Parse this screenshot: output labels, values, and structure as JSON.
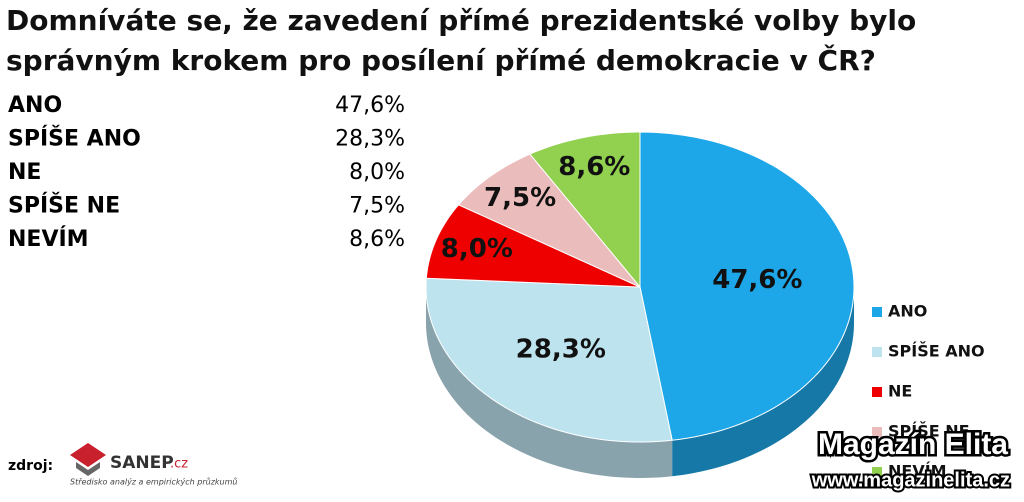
{
  "chart_data": {
    "type": "pie",
    "title": [
      "Domníváte se, že zavedení přímé prezidentské volby bylo",
      "správným krokem pro posílení přímé demokracie v ČR?"
    ],
    "categories": [
      "ANO",
      "SPÍŠE ANO",
      "NE",
      "SPÍŠE NE",
      "NEVÍM"
    ],
    "values": [
      47.6,
      28.3,
      8.0,
      7.5,
      8.6
    ],
    "value_labels": [
      "47,6%",
      "28,3%",
      "8,0%",
      "7,5%",
      "8,6%"
    ],
    "colors": [
      "#1ea7e8",
      "#bde3ef",
      "#ee0000",
      "#ebbcbc",
      "#92d050"
    ],
    "legend": "right"
  },
  "source": {
    "label": "zdroj:",
    "logo": "SANEP",
    "logo_suffix": ".cz",
    "logo_subtitle": "Středisko analýz a empirických průzkumů"
  },
  "watermark": {
    "name": "Magazín Elita",
    "url": "www.magazinelita.cz"
  }
}
